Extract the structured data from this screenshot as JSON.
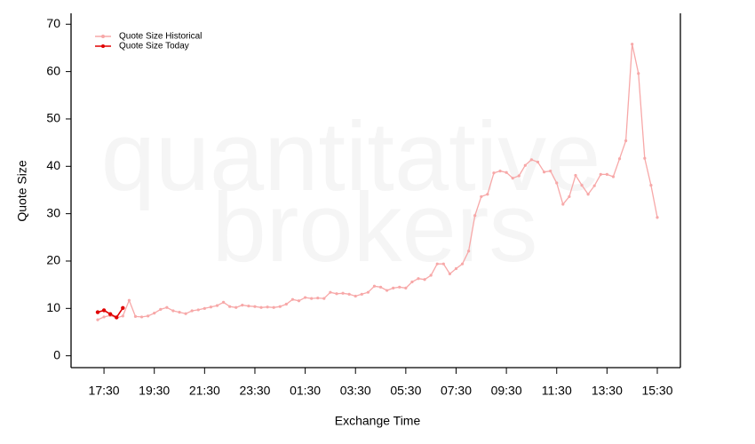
{
  "chart_data": {
    "type": "line",
    "xlabel": "Exchange Time",
    "ylabel": "Quote Size",
    "watermark": [
      "quantitative",
      "brokers"
    ],
    "categories": [
      null,
      "17:30",
      null,
      null,
      null,
      null,
      null,
      null,
      null,
      "19:30",
      null,
      null,
      null,
      null,
      null,
      null,
      null,
      "21:30",
      null,
      null,
      null,
      null,
      null,
      null,
      null,
      "23:30",
      null,
      null,
      null,
      null,
      null,
      null,
      null,
      "01:30",
      null,
      null,
      null,
      null,
      null,
      null,
      null,
      "03:30",
      null,
      null,
      null,
      null,
      null,
      null,
      null,
      "05:30",
      null,
      null,
      null,
      null,
      null,
      null,
      null,
      "07:30",
      null,
      null,
      null,
      null,
      null,
      null,
      null,
      "09:30",
      null,
      null,
      null,
      null,
      null,
      null,
      null,
      "11:30",
      null,
      null,
      null,
      null,
      null,
      null,
      null,
      "13:30",
      null,
      null,
      null,
      null,
      null,
      null,
      null,
      "15:30"
    ],
    "series": [
      {
        "name": "Quote Size Historical",
        "color": "#f7a8a8",
        "values": [
          7.6,
          8.2,
          8.5,
          8.0,
          8.4,
          11.7,
          8.3,
          8.2,
          8.4,
          9.0,
          9.8,
          10.2,
          9.5,
          9.2,
          8.9,
          9.5,
          9.7,
          10.0,
          10.3,
          10.6,
          11.3,
          10.4,
          10.2,
          10.7,
          10.5,
          10.4,
          10.2,
          10.3,
          10.2,
          10.4,
          10.9,
          11.9,
          11.6,
          12.3,
          12.1,
          12.2,
          12.1,
          13.4,
          13.1,
          13.2,
          13.0,
          12.6,
          13.0,
          13.4,
          14.7,
          14.5,
          13.8,
          14.3,
          14.5,
          14.3,
          15.6,
          16.3,
          16.1,
          17.0,
          19.4,
          19.4,
          17.3,
          18.4,
          19.4,
          22.1,
          29.6,
          33.6,
          34.1,
          38.6,
          39.0,
          38.7,
          37.5,
          38.0,
          40.2,
          41.4,
          40.9,
          38.8,
          39.0,
          36.5,
          32.0,
          33.6,
          38.1,
          36.0,
          34.1,
          35.9,
          38.3,
          38.3,
          37.8,
          41.6,
          45.4,
          65.8,
          59.6,
          41.7,
          36.0,
          29.2
        ]
      },
      {
        "name": "Quote Size Today",
        "color": "#e00000",
        "values": [
          9.2,
          9.6,
          8.8,
          8.1,
          10.1,
          null,
          null,
          null,
          null,
          null,
          null,
          null,
          null,
          null,
          null,
          null,
          null,
          null,
          null,
          null,
          null,
          null,
          null,
          null,
          null,
          null,
          null,
          null,
          null,
          null,
          null,
          null,
          null,
          null,
          null,
          null,
          null,
          null,
          null,
          null,
          null,
          null,
          null,
          null,
          null,
          null,
          null,
          null,
          null,
          null,
          null,
          null,
          null,
          null,
          null,
          null,
          null,
          null,
          null,
          null,
          null,
          null,
          null,
          null,
          null,
          null,
          null,
          null,
          null,
          null,
          null,
          null,
          null,
          null,
          null,
          null,
          null,
          null,
          null,
          null,
          null,
          null,
          null,
          null,
          null,
          null,
          null,
          null,
          null,
          null
        ]
      }
    ],
    "ylim": [
      -2.5,
      72.3
    ],
    "yticks": [
      0,
      10,
      20,
      30,
      40,
      50,
      60,
      70
    ],
    "legend": "upper left"
  }
}
